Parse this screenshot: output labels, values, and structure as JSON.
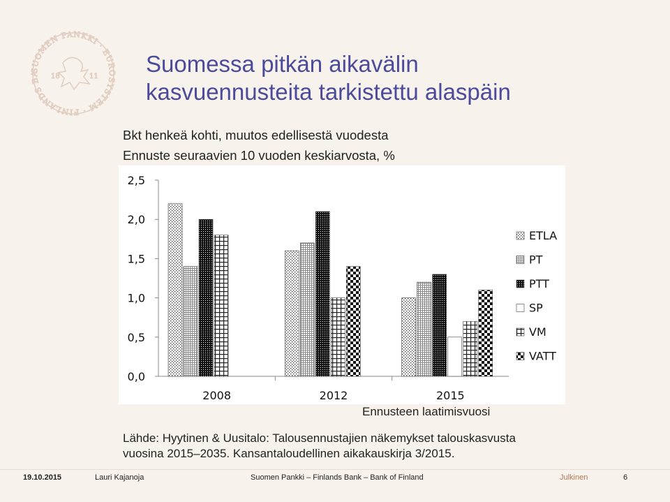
{
  "slide": {
    "title_line1": "Suomessa pitkän aikavälin",
    "title_line2": "kasvuennusteita tarkistettu alaspäin",
    "subtitle_line1": "Bkt henkeä kohti, muutos edellisestä vuodesta",
    "subtitle_line2": "Ennuste seuraavien 10 vuoden keskiarvosta, %",
    "source_line1": "Lähde: Hyytinen & Uusitalo: Talousennustajien näkemykset talouskasvusta",
    "source_line2": "vuosina 2015–2035. Kansantaloudellinen aikakauskirja 3/2015."
  },
  "logo": {
    "text": "SUOMEN PANKKI · EUROSYSTEM · FINLANDS BANK",
    "year_left": "18",
    "year_right": "11",
    "color": "#d8bfb0"
  },
  "footer": {
    "date": "19.10.2015",
    "author": "Lauri Kajanoja",
    "organization": "Suomen Pankki – Finlands Bank – Bank of Finland",
    "classification": "Julkinen",
    "page": "6"
  },
  "chart_data": {
    "type": "bar",
    "xlabel": "Ennusteen laatimisvuosi",
    "ylabel": "",
    "ylim": [
      0,
      2.5
    ],
    "yticks": [
      0,
      0.5,
      1.0,
      1.5,
      2.0,
      2.5
    ],
    "ytick_labels": [
      "0,0",
      "0,5",
      "1,0",
      "1,5",
      "2,0",
      "2,5"
    ],
    "categories": [
      "2008",
      "2012",
      "2015"
    ],
    "legend_position": "right",
    "grid": false,
    "series": [
      {
        "name": "ETLA",
        "pattern": "dots",
        "values": [
          2.2,
          1.6,
          1.0
        ]
      },
      {
        "name": "PT",
        "pattern": "fine-grid",
        "values": [
          1.4,
          1.7,
          1.2
        ]
      },
      {
        "name": "PTT",
        "pattern": "dense-dark",
        "values": [
          2.0,
          2.1,
          1.3
        ]
      },
      {
        "name": "SP",
        "pattern": "blank",
        "values": [
          null,
          null,
          0.5
        ]
      },
      {
        "name": "VM",
        "pattern": "grid",
        "values": [
          1.8,
          1.0,
          0.7
        ]
      },
      {
        "name": "VATT",
        "pattern": "checker",
        "values": [
          null,
          1.4,
          1.1
        ]
      }
    ]
  }
}
